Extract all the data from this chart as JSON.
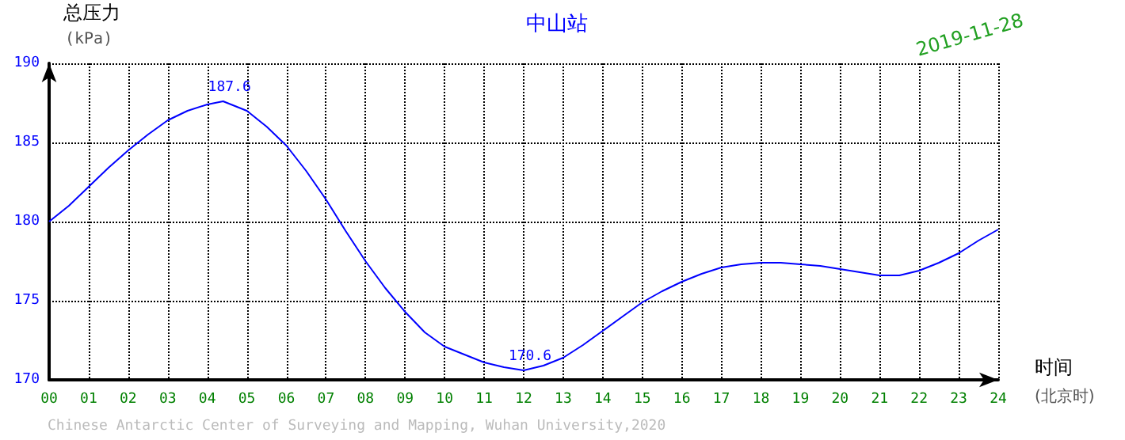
{
  "chart_data": {
    "type": "line",
    "title": "中山站",
    "xlabel": "时间\n(北京时)",
    "ylabel": "总压力\n(kPa)",
    "x": [
      0,
      0.5,
      1,
      1.5,
      2,
      2.5,
      3,
      3.5,
      4,
      4.4,
      5,
      5.5,
      6,
      6.5,
      7,
      7.5,
      8,
      8.5,
      9,
      9.5,
      10,
      10.5,
      11,
      11.5,
      12,
      12.5,
      13,
      13.5,
      14,
      14.5,
      15,
      15.5,
      16,
      16.5,
      17,
      17.5,
      18,
      18.5,
      19,
      19.5,
      20,
      20.5,
      21,
      21.5,
      22,
      22.5,
      23,
      23.5,
      24
    ],
    "series": [
      {
        "color": "#0000ff",
        "values": [
          180.0,
          181.0,
          182.2,
          183.4,
          184.5,
          185.5,
          186.4,
          187.0,
          187.4,
          187.6,
          187.0,
          186.0,
          184.8,
          183.2,
          181.4,
          179.4,
          177.5,
          175.8,
          174.3,
          173.0,
          172.1,
          171.6,
          171.1,
          170.8,
          170.6,
          170.9,
          171.4,
          172.2,
          173.1,
          174.0,
          174.9,
          175.6,
          176.2,
          176.7,
          177.1,
          177.3,
          177.4,
          177.4,
          177.3,
          177.2,
          177.0,
          176.8,
          176.6,
          176.6,
          176.9,
          177.4,
          178.0,
          178.8,
          179.5
        ]
      }
    ],
    "xlim": [
      0,
      24
    ],
    "xticks": [
      {
        "value": 0,
        "label": "00"
      },
      {
        "value": 1,
        "label": "01"
      },
      {
        "value": 2,
        "label": "02"
      },
      {
        "value": 3,
        "label": "03"
      },
      {
        "value": 4,
        "label": "04"
      },
      {
        "value": 5,
        "label": "05"
      },
      {
        "value": 6,
        "label": "06"
      },
      {
        "value": 7,
        "label": "07"
      },
      {
        "value": 8,
        "label": "08"
      },
      {
        "value": 9,
        "label": "09"
      },
      {
        "value": 10,
        "label": "10"
      },
      {
        "value": 11,
        "label": "11"
      },
      {
        "value": 12,
        "label": "12"
      },
      {
        "value": 13,
        "label": "13"
      },
      {
        "value": 14,
        "label": "14"
      },
      {
        "value": 15,
        "label": "15"
      },
      {
        "value": 16,
        "label": "16"
      },
      {
        "value": 17,
        "label": "17"
      },
      {
        "value": 18,
        "label": "18"
      },
      {
        "value": 19,
        "label": "19"
      },
      {
        "value": 20,
        "label": "20"
      },
      {
        "value": 21,
        "label": "21"
      },
      {
        "value": 22,
        "label": "22"
      },
      {
        "value": 23,
        "label": "23"
      },
      {
        "value": 24,
        "label": "24"
      }
    ],
    "ylim": [
      170,
      190
    ],
    "yticks": [
      170,
      175,
      180,
      185,
      190
    ],
    "grid": true,
    "marker": "none",
    "line_style": "solid",
    "annotations": [
      {
        "text": "187.6",
        "x": 4.4,
        "y": 187.6
      },
      {
        "text": "170.6",
        "x": 12,
        "y": 170.6
      },
      "2019-11-28",
      "Chinese Antarctic Center of Surveying and Mapping, Wuhan University,2020"
    ]
  }
}
